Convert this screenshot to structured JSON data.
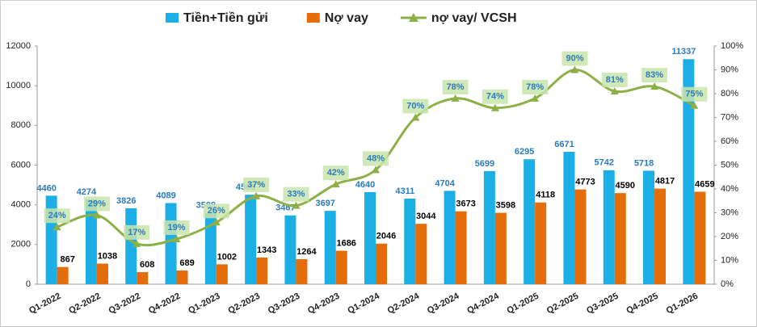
{
  "chart_data": {
    "type": "bar-line",
    "categories": [
      "Q1-2022",
      "Q2-2022",
      "Q3-2022",
      "Q4-2022",
      "Q1-2023",
      "Q2-2023",
      "Q3-2023",
      "Q4-2023",
      "Q1-2024",
      "Q2-2024",
      "Q3-2024",
      "Q4-2024",
      "Q1-2025",
      "Q2-2025",
      "Q3-2025",
      "Q4-2025",
      "Q1-2026"
    ],
    "series": [
      {
        "name": "Tiền+Tiền gửi",
        "type": "bar",
        "color": "#1cafe6",
        "label_color": "#2a7bbf",
        "values": [
          4460,
          4274,
          3826,
          4089,
          3588,
          4508,
          3467,
          3697,
          4640,
          4311,
          4704,
          5699,
          6295,
          6671,
          5742,
          5718,
          11337
        ]
      },
      {
        "name": "Nợ vay",
        "type": "bar",
        "color": "#e46c0a",
        "label_color": "#000000",
        "values": [
          867,
          1038,
          608,
          689,
          1002,
          1343,
          1264,
          1686,
          2046,
          3044,
          3673,
          3598,
          4118,
          4773,
          4590,
          4817,
          4659
        ]
      },
      {
        "name": "nợ vay/ VCSH",
        "type": "line",
        "axis": "y2",
        "color": "#8db046",
        "values": [
          24,
          29,
          17,
          19,
          26,
          37,
          33,
          42,
          48,
          70,
          78,
          74,
          78,
          90,
          81,
          83,
          75
        ],
        "value_labels": [
          "24%",
          "29%",
          "17%",
          "19%",
          "26%",
          "37%",
          "33%",
          "42%",
          "48%",
          "70%",
          "78%",
          "74%",
          "78%",
          "90%",
          "81%",
          "83%",
          "75%"
        ]
      }
    ],
    "ylim": [
      0,
      12000
    ],
    "yticks": [
      0,
      2000,
      4000,
      6000,
      8000,
      10000,
      12000
    ],
    "y2lim": [
      0,
      100
    ],
    "y2ticks": [
      {
        "value": 0,
        "label": "0%"
      },
      {
        "value": 10,
        "label": "10%"
      },
      {
        "value": 20,
        "label": "20%"
      },
      {
        "value": 30,
        "label": "30%"
      },
      {
        "value": 40,
        "label": "40%"
      },
      {
        "value": 50,
        "label": "50%"
      },
      {
        "value": 60,
        "label": "60%"
      },
      {
        "value": 70,
        "label": "70%"
      },
      {
        "value": 80,
        "label": "80%"
      },
      {
        "value": 90,
        "label": "90%"
      },
      {
        "value": 100,
        "label": "100%"
      }
    ],
    "legend": "top"
  }
}
